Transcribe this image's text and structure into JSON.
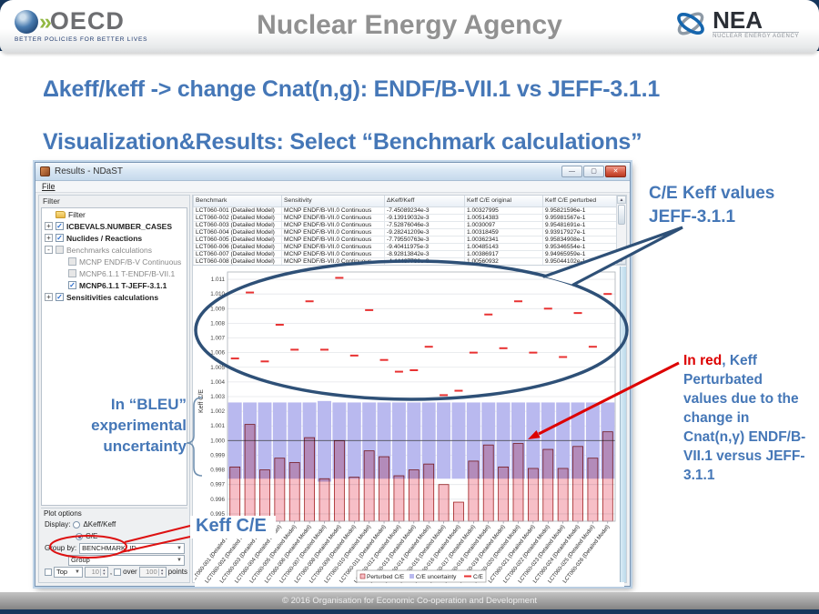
{
  "slide": {
    "header": {
      "oecd_text": "OECD",
      "oecd_tagline": "BETTER POLICIES FOR BETTER LIVES",
      "title": "Nuclear Energy Agency",
      "nea_text": "NEA",
      "nea_tagline": "NUCLEAR ENERGY AGENCY"
    },
    "title": "Δkeff/keff -> change Cnat(n,g): ENDF/B-VII.1 vs JEFF-3.1.1",
    "subtitle": "Visualization&Results: Select “Benchmark calculations”",
    "footer": "© 2016 Organisation for Economic Co-operation and Development"
  },
  "annotations": {
    "ce_keff_text": "C/E Keff values JEFF-3.1.1",
    "bleu_text": "In “BLEU” experimental uncertainty",
    "in_red_lead": "In red",
    "in_red_rest": ", Keff Perturbated values due to the change in Cnat(n,γ) ENDF/B-VII.1 versus JEFF-3.1.1",
    "keff_ce_text": "Keff C/E"
  },
  "window": {
    "title": "Results - NDaST",
    "menu_file": "File",
    "controls": {
      "minimize": "—",
      "maximize": "▢",
      "close": "✕"
    },
    "filter_panel": {
      "caption": "Filter",
      "tree": [
        {
          "label": "Filter",
          "level": 0,
          "icon": "folder"
        },
        {
          "label": "ICBEVALS.NUMBER_CASES",
          "level": 0,
          "expander": "+",
          "checkbox": true,
          "bold": true
        },
        {
          "label": "Nuclides / Reactions",
          "level": 0,
          "expander": "+",
          "checkbox": true,
          "bold": true
        },
        {
          "label": "Benchmarks calculations",
          "level": 0,
          "expander": "-",
          "checkbox": false,
          "dim": true
        },
        {
          "label": "MCNP ENDF/B-V Continuous",
          "level": 1,
          "checkbox": false,
          "dim": true
        },
        {
          "label": "MCNP6.1.1 T-ENDF/B-VII.1",
          "level": 1,
          "checkbox": false,
          "dim": true
        },
        {
          "label": "MCNP6.1.1 T-JEFF-3.1.1",
          "level": 1,
          "checkbox": true,
          "bold": true
        },
        {
          "label": "Sensitivities calculations",
          "level": 0,
          "expander": "+",
          "checkbox": true,
          "bold": true
        }
      ]
    },
    "table": {
      "columns": [
        "Benchmark",
        "Sensitivity",
        "ΔKeff/Keff",
        "Keff C/E original",
        "Keff C/E perturbed"
      ],
      "rows": [
        [
          "LCT060-001 (Detailed Model)",
          "MCNP ENDF/B-VII.0 Continuous",
          "-7.45089234e-3",
          "1.00327995",
          "9.95821596e-1"
        ],
        [
          "LCT060-002 (Detailed Model)",
          "MCNP ENDF/B-VII.0 Continuous",
          "-9.13919032e-3",
          "1.00514383",
          "9.95981567e-1"
        ],
        [
          "LCT060-003 (Detailed Model)",
          "MCNP ENDF/B-VII.0 Continuous",
          "-7.52876046e-3",
          "1.0030097",
          "9.95481691e-1"
        ],
        [
          "LCT060-004 (Detailed Model)",
          "MCNP ENDF/B-VII.0 Continuous",
          "-9.28241209e-3",
          "1.00318459",
          "9.93917927e-1"
        ],
        [
          "LCT060-005 (Detailed Model)",
          "MCNP ENDF/B-VII.0 Continuous",
          "-7.79550763e-3",
          "1.00362341",
          "9.95834908e-1"
        ],
        [
          "LCT060-006 (Detailed Model)",
          "MCNP ENDF/B-VII.0 Continuous",
          "-9.40411975e-3",
          "1.00485143",
          "9.95346554e-1"
        ],
        [
          "LCT060-007 (Detailed Model)",
          "MCNP ENDF/B-VII.0 Continuous",
          "-8.92813842e-3",
          "1.00386917",
          "9.94965959e-1"
        ],
        [
          "LCT060-008 (Detailed Model)",
          "MCNP ENDF/B-VII.0 Continuous",
          "-4.44467790e-3",
          "1.00560932",
          "9.95044102e-1"
        ]
      ]
    },
    "plot_options": {
      "caption": "Plot options",
      "display_label": "Display:",
      "radio_dkeff": "ΔKeff/Keff",
      "radio_ce": "C/E",
      "selected": "C/E",
      "group_by_label": "Group by:",
      "group_by_value": "BENCHMARK_ID",
      "group_value": "Group",
      "top_label": "Top",
      "top_value": "10",
      "comma": ",",
      "over_label": "over",
      "over_value": "100",
      "points_label": "points"
    }
  },
  "chart_data": {
    "type": "bar",
    "title": "",
    "xlabel": "",
    "ylabel": "Keff C/E",
    "ylim": [
      0.9945,
      1.0115
    ],
    "baseline": 1.0,
    "grid": true,
    "legend_position": "bottom-center",
    "yticks": [
      0.995,
      0.996,
      0.997,
      0.998,
      0.999,
      1.0,
      1.001,
      1.002,
      1.003,
      1.004,
      1.005,
      1.006,
      1.007,
      1.008,
      1.009,
      1.01,
      1.011
    ],
    "categories": [
      "LCT060-001 (Detailed Model)",
      "LCT060-002 (Detailed Model)",
      "LCT060-003 (Detailed Model)",
      "LCT060-004 (Detailed Model)",
      "LCT060-005 (Detailed Model)",
      "LCT060-006 (Detailed Model)",
      "LCT060-007 (Detailed Model)",
      "LCT060-008 (Detailed Model)",
      "LCT060-009 (Detailed Model)",
      "LCT060-010 (Detailed Model)",
      "LCT060-011 (Detailed Model)",
      "LCT060-012 (Detailed Model)",
      "LCT060-013 (Detailed Model)",
      "LCT060-014 (Detailed Model)",
      "LCT060-015 (Detailed Model)",
      "LCT060-016 (Detailed Model)",
      "LCT060-017 (Detailed Model)",
      "LCT060-018 (Detailed Model)",
      "LCT060-019 (Detailed Model)",
      "LCT060-020 (Detailed Model)",
      "LCT060-021 (Detailed Model)",
      "LCT060-022 (Detailed Model)",
      "LCT060-023 (Detailed Model)",
      "LCT060-024 (Detailed Model)",
      "LCT060-025 (Detailed Model)",
      "LCT060-026 (Detailed Model)"
    ],
    "series": [
      {
        "name": "Perturbed C/E",
        "type": "bar",
        "color": "#f7bfc7",
        "values": [
          0.9982,
          1.0011,
          0.998,
          0.9988,
          0.9985,
          1.0002,
          0.9974,
          1.0,
          0.9975,
          0.9993,
          0.9989,
          0.9976,
          0.998,
          0.9984,
          0.997,
          0.9958,
          0.9986,
          0.9997,
          0.9982,
          0.9998,
          0.9981,
          0.9994,
          0.9981,
          0.9996,
          0.9988,
          1.0006
        ]
      },
      {
        "name": "C/E uncertainty",
        "type": "band",
        "color": "#b9b9ef",
        "low": [
          0.9974,
          0.9974,
          0.9974,
          0.9974,
          0.9974,
          0.9974,
          0.9972,
          0.9974,
          0.9974,
          0.9974,
          0.9974,
          0.9974,
          0.9974,
          0.9974,
          0.9974,
          0.9974,
          0.9974,
          0.9974,
          0.9974,
          0.9974,
          0.9974,
          0.9974,
          0.9974,
          0.9974,
          0.9974,
          0.9974
        ],
        "high": [
          1.0026,
          1.0026,
          1.0026,
          1.0026,
          1.0026,
          1.0026,
          1.0027,
          1.0026,
          1.0026,
          1.0026,
          1.0026,
          1.0026,
          1.0026,
          1.0026,
          1.0026,
          1.0026,
          1.0026,
          1.0026,
          1.0026,
          1.0026,
          1.0026,
          1.0026,
          1.0026,
          1.0026,
          1.0026,
          1.0026
        ]
      },
      {
        "name": "C/E",
        "type": "dash",
        "color": "#e83232",
        "values": [
          1.0056,
          1.0101,
          1.0054,
          1.0079,
          1.0062,
          1.0095,
          1.0062,
          1.0111,
          1.0058,
          1.0089,
          1.0055,
          1.0047,
          1.0048,
          1.0064,
          1.0031,
          1.0034,
          1.006,
          1.0086,
          1.0063,
          1.0095,
          1.006,
          1.009,
          1.0057,
          1.0087,
          1.0064,
          1.01
        ]
      }
    ]
  }
}
